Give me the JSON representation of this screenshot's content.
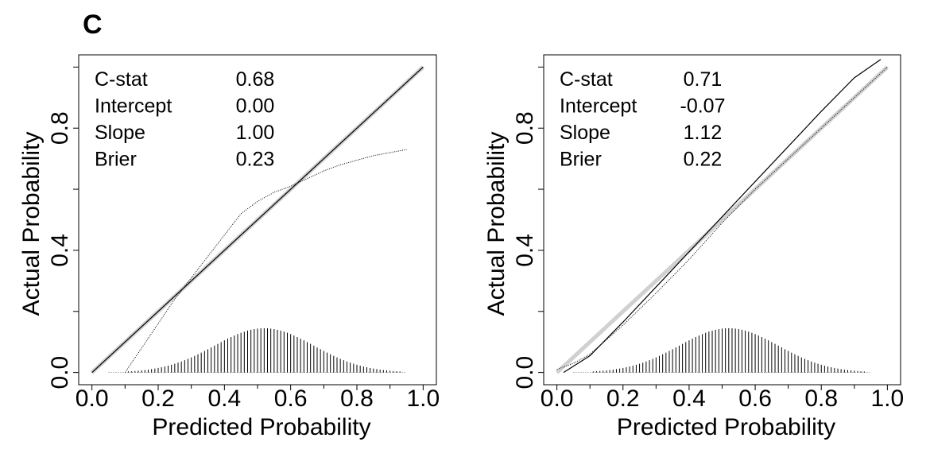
{
  "panel_label": "C",
  "chart_data": [
    {
      "type": "line",
      "xlabel": "Predicted Probability",
      "ylabel": "Actual Probability",
      "xlim": [
        0,
        1
      ],
      "ylim": [
        0,
        1
      ],
      "x_ticks": [
        "0.0",
        "0.2",
        "0.4",
        "0.6",
        "0.8",
        "1.0"
      ],
      "y_ticks": [
        "0.0",
        "0.4",
        "0.8"
      ],
      "stats": [
        {
          "label": "C-stat",
          "value": "0.68"
        },
        {
          "label": "Intercept",
          "value": "0.00"
        },
        {
          "label": "Slope",
          "value": "1.00"
        },
        {
          "label": "Brier",
          "value": "0.23"
        }
      ],
      "series": [
        {
          "name": "ideal",
          "color": "#d0d0d0",
          "x": [
            0,
            1
          ],
          "y": [
            0,
            1
          ]
        },
        {
          "name": "calibration",
          "color": "#000000",
          "x": [
            0,
            1
          ],
          "y": [
            0,
            1
          ]
        },
        {
          "name": "loess",
          "color": "#000000",
          "x": [
            0.1,
            0.15,
            0.2,
            0.25,
            0.3,
            0.35,
            0.4,
            0.45,
            0.5,
            0.55,
            0.6,
            0.65,
            0.7,
            0.75,
            0.8,
            0.85,
            0.9,
            0.95
          ],
          "y": [
            0.0,
            0.08,
            0.16,
            0.24,
            0.31,
            0.38,
            0.45,
            0.52,
            0.56,
            0.59,
            0.61,
            0.635,
            0.66,
            0.68,
            0.695,
            0.71,
            0.72,
            0.73
          ]
        }
      ],
      "histogram": {
        "x_start": 0.05,
        "x_end": 0.95,
        "bins": 90,
        "center": 0.52,
        "sd": 0.15,
        "max_height": 0.145
      }
    },
    {
      "type": "line",
      "xlabel": "Predicted Probability",
      "ylabel": "Actual Probability",
      "xlim": [
        0,
        1
      ],
      "ylim": [
        0,
        1
      ],
      "x_ticks": [
        "0.0",
        "0.2",
        "0.4",
        "0.6",
        "0.8",
        "1.0"
      ],
      "y_ticks": [
        "0.0",
        "0.4",
        "0.8"
      ],
      "stats": [
        {
          "label": "C-stat",
          "value": "0.71"
        },
        {
          "label": "Intercept",
          "value": "-0.07"
        },
        {
          "label": "Slope",
          "value": "1.12"
        },
        {
          "label": "Brier",
          "value": "0.22"
        }
      ],
      "series": [
        {
          "name": "ideal",
          "color": "#d0d0d0",
          "x": [
            0,
            1
          ],
          "y": [
            0,
            1
          ]
        },
        {
          "name": "calibration",
          "color": "#000000",
          "x": [
            0.02,
            0.1,
            0.2,
            0.3,
            0.4,
            0.5,
            0.6,
            0.7,
            0.8,
            0.9,
            0.98
          ],
          "y": [
            0.0,
            0.055,
            0.165,
            0.28,
            0.395,
            0.51,
            0.625,
            0.74,
            0.855,
            0.965,
            1.025
          ]
        },
        {
          "name": "loess",
          "color": "#000000",
          "x": [
            0.0,
            0.05,
            0.1,
            0.2,
            0.3,
            0.4,
            0.5,
            0.6,
            0.7,
            0.8,
            0.9,
            1.0
          ],
          "y": [
            0.01,
            0.03,
            0.06,
            0.155,
            0.26,
            0.37,
            0.49,
            0.6,
            0.7,
            0.8,
            0.9,
            1.0
          ]
        }
      ],
      "histogram": {
        "x_start": 0.05,
        "x_end": 0.95,
        "bins": 90,
        "center": 0.52,
        "sd": 0.15,
        "max_height": 0.145
      }
    }
  ]
}
